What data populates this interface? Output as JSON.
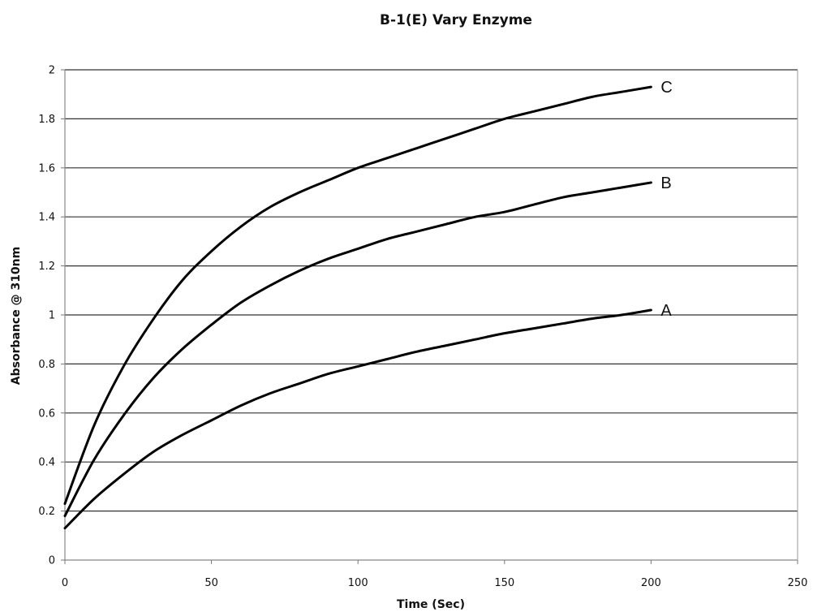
{
  "chart_data": {
    "type": "line",
    "title": "B-1(E) Vary Enzyme",
    "xlabel": "Time (Sec)",
    "ylabel": "Absorbance @ 310nm",
    "xlim": [
      0,
      250
    ],
    "ylim": [
      0,
      2
    ],
    "xticks": [
      0,
      50,
      100,
      150,
      200,
      250
    ],
    "yticks": [
      0,
      0.2,
      0.4,
      0.6,
      0.8,
      1,
      1.2,
      1.4,
      1.6,
      1.8,
      2
    ],
    "grid": "horizontal",
    "series": [
      {
        "name": "A",
        "x": [
          0,
          10,
          20,
          30,
          40,
          50,
          60,
          70,
          80,
          90,
          100,
          110,
          120,
          130,
          140,
          150,
          160,
          170,
          180,
          190,
          200
        ],
        "y": [
          0.13,
          0.25,
          0.35,
          0.44,
          0.51,
          0.57,
          0.63,
          0.68,
          0.72,
          0.76,
          0.79,
          0.82,
          0.85,
          0.875,
          0.9,
          0.925,
          0.945,
          0.965,
          0.985,
          1.0,
          1.02
        ]
      },
      {
        "name": "B",
        "x": [
          0,
          10,
          20,
          30,
          40,
          50,
          60,
          70,
          80,
          90,
          100,
          110,
          120,
          130,
          140,
          150,
          160,
          170,
          180,
          190,
          200
        ],
        "y": [
          0.18,
          0.41,
          0.59,
          0.74,
          0.86,
          0.96,
          1.05,
          1.12,
          1.18,
          1.23,
          1.27,
          1.31,
          1.34,
          1.37,
          1.4,
          1.42,
          1.45,
          1.48,
          1.5,
          1.52,
          1.54
        ]
      },
      {
        "name": "C",
        "x": [
          0,
          10,
          20,
          30,
          40,
          50,
          60,
          70,
          80,
          90,
          100,
          110,
          120,
          130,
          140,
          150,
          160,
          170,
          180,
          190,
          200
        ],
        "y": [
          0.23,
          0.55,
          0.79,
          0.98,
          1.14,
          1.26,
          1.36,
          1.44,
          1.5,
          1.55,
          1.6,
          1.64,
          1.68,
          1.72,
          1.76,
          1.8,
          1.83,
          1.86,
          1.89,
          1.91,
          1.93
        ]
      }
    ]
  }
}
